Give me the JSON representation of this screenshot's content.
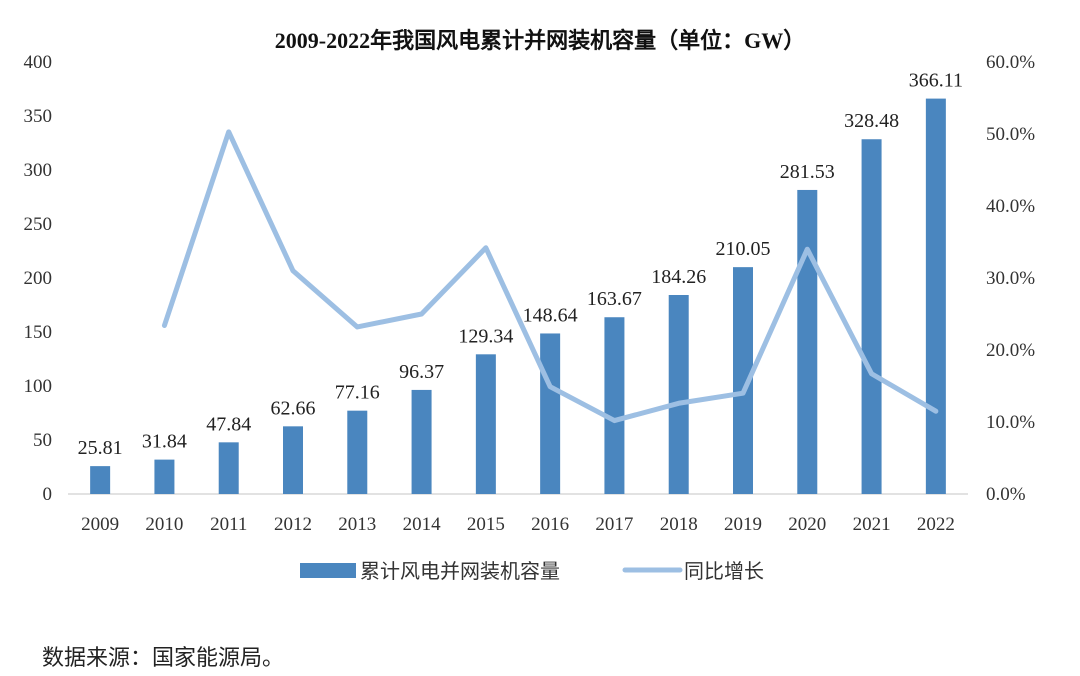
{
  "chart_data": {
    "type": "bar",
    "title": "2009-2022年我国风电累计并网装机容量（单位：GW）",
    "categories": [
      "2009",
      "2010",
      "2011",
      "2012",
      "2013",
      "2014",
      "2015",
      "2016",
      "2017",
      "2018",
      "2019",
      "2020",
      "2021",
      "2022"
    ],
    "series": [
      {
        "name": "累计风电并网装机容量",
        "type": "bar",
        "axis": "left",
        "color": "#4a86bf",
        "values": [
          25.81,
          31.84,
          47.84,
          62.66,
          77.16,
          96.37,
          129.34,
          148.64,
          163.67,
          184.26,
          210.05,
          281.53,
          328.48,
          366.11
        ],
        "labels": [
          "25.81",
          "31.84",
          "47.84",
          "62.66",
          "77.16",
          "96.37",
          "129.34",
          "148.64",
          "163.67",
          "184.26",
          "210.05",
          "281.53",
          "328.48",
          "366.11"
        ]
      },
      {
        "name": "同比增长",
        "type": "line",
        "axis": "right",
        "color": "#9dbfe3",
        "values": [
          null,
          23.4,
          50.3,
          31.0,
          23.2,
          25.0,
          34.2,
          14.9,
          10.2,
          12.6,
          14.0,
          34.0,
          16.7,
          11.5
        ]
      }
    ],
    "ylim_left": [
      0,
      400
    ],
    "yticks_left": [
      "0",
      "50",
      "100",
      "150",
      "200",
      "250",
      "300",
      "350",
      "400"
    ],
    "ylim_right": [
      0,
      60
    ],
    "yticks_right": [
      "0.0%",
      "10.0%",
      "20.0%",
      "30.0%",
      "40.0%",
      "50.0%",
      "60.0%"
    ],
    "legend": [
      "累计风电并网装机容量",
      "同比增长"
    ],
    "legend_position": "bottom",
    "grid": false
  },
  "source_note": "数据来源：国家能源局。"
}
